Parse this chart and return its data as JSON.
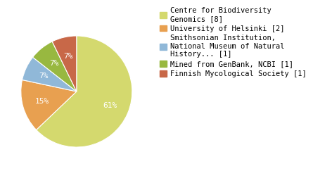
{
  "labels": [
    "Centre for Biodiversity\nGenomics [8]",
    "University of Helsinki [2]",
    "Smithsonian Institution,\nNational Museum of Natural\nHistory... [1]",
    "Mined from GenBank, NCBI [1]",
    "Finnish Mycological Society [1]"
  ],
  "values": [
    61,
    15,
    7,
    7,
    7
  ],
  "colors": [
    "#d4d96e",
    "#e8a050",
    "#90b8d8",
    "#98b840",
    "#c86848"
  ],
  "pct_labels": [
    "61%",
    "15%",
    "7%",
    "7%",
    "7%"
  ],
  "background_color": "#ffffff",
  "text_color": "#ffffff",
  "font_size": 8,
  "legend_font_size": 7.5
}
